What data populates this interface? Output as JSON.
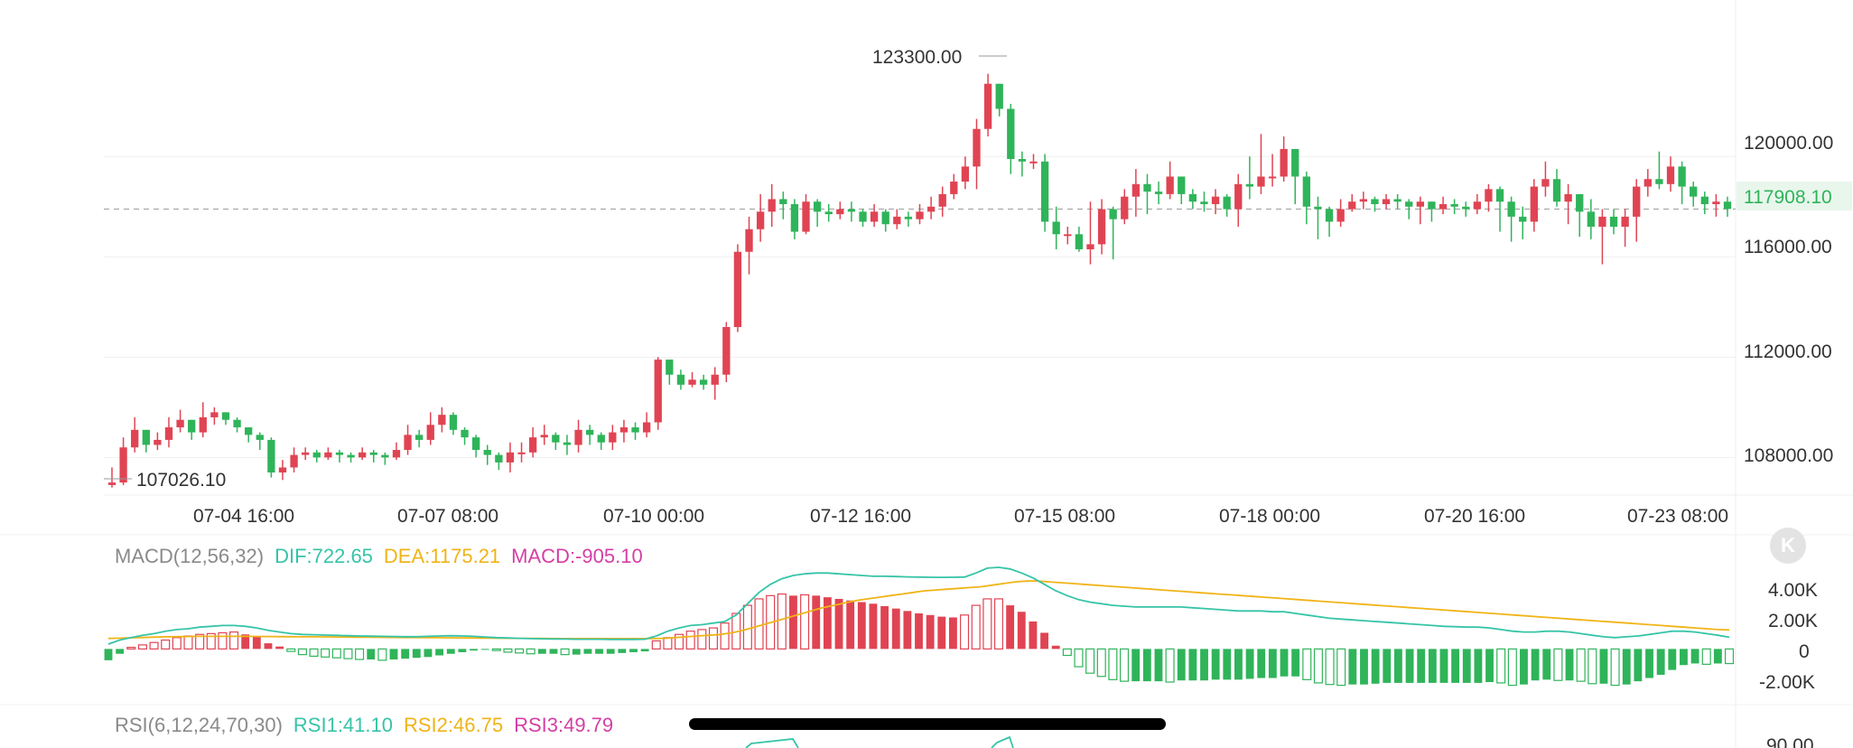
{
  "chart_data": [
    {
      "type": "candlestick",
      "x_tick_labels": [
        "07-04 16:00",
        "07-07 08:00",
        "07-10 00:00",
        "07-12 16:00",
        "07-15 08:00",
        "07-18 00:00",
        "07-20 16:00",
        "07-23 08:00"
      ],
      "y_tick_labels": [
        "120000.00",
        "116000.00",
        "112000.00",
        "108000.00"
      ],
      "y_ticks": [
        120000,
        116000,
        112000,
        108000
      ],
      "ylim": [
        106500,
        124800
      ],
      "current_price": 117908.1,
      "current_price_label": "117908.10",
      "high_label": "123300.00",
      "high_value": 123300,
      "low_label": "107026.10",
      "low_value": 107026.1,
      "up_color": "#e04453",
      "down_color": "#2fb45a",
      "closes": [
        107000,
        108400,
        109100,
        108500,
        108700,
        109200,
        109500,
        109000,
        109600,
        109800,
        109500,
        109200,
        108900,
        108700,
        107400,
        107600,
        108100,
        108200,
        108000,
        108200,
        108100,
        108000,
        108200,
        108100,
        108000,
        108300,
        108900,
        108700,
        109300,
        109700,
        109100,
        108800,
        108300,
        108100,
        107800,
        108200,
        108200,
        108800,
        108900,
        108600,
        108500,
        109100,
        108900,
        108600,
        109000,
        109200,
        109000,
        109400,
        111900,
        111300,
        110900,
        111100,
        110900,
        111300,
        113200,
        116200,
        117100,
        117800,
        118300,
        118100,
        117000,
        118200,
        117800,
        117700,
        117900,
        117800,
        117400,
        117800,
        117300,
        117600,
        117500,
        117800,
        118000,
        118500,
        119000,
        119600,
        121100,
        122900,
        121900,
        119900,
        119800,
        119800,
        117400,
        116900,
        116900,
        116300,
        116500,
        117900,
        117500,
        118400,
        118900,
        118600,
        118500,
        119200,
        118500,
        118200,
        118100,
        118400,
        117900,
        118900,
        118800,
        119200,
        119200,
        120300,
        119200,
        118000,
        117900,
        117400,
        117900,
        118200,
        118300,
        118100,
        118300,
        118200,
        118000,
        118200,
        117900,
        118100,
        118000,
        117900,
        118200,
        118700,
        118200,
        117600,
        117400,
        118800,
        119100,
        118200,
        118500,
        117800,
        117200,
        117600,
        117200,
        117600,
        118800,
        119100,
        118900,
        119600,
        118800,
        118400,
        118100,
        118200,
        117908.1
      ],
      "highs": [
        107600,
        108800,
        109600,
        108900,
        109000,
        109600,
        109900,
        109500,
        110200,
        110000,
        109800,
        109600,
        109200,
        109000,
        108800,
        107900,
        108400,
        108400,
        108300,
        108400,
        108300,
        108200,
        108400,
        108300,
        108200,
        108600,
        109300,
        109100,
        109800,
        110000,
        109800,
        109200,
        108900,
        108500,
        108200,
        108600,
        108600,
        109200,
        109300,
        109000,
        108900,
        109500,
        109300,
        109000,
        109300,
        109500,
        109400,
        109800,
        112000,
        111900,
        111500,
        111400,
        111300,
        111600,
        113400,
        116500,
        117600,
        118500,
        118900,
        118600,
        118300,
        118500,
        118300,
        118100,
        118200,
        118200,
        117900,
        118100,
        117900,
        117900,
        117800,
        118100,
        118400,
        118800,
        119300,
        120000,
        121500,
        123300,
        122900,
        122100,
        120200,
        120100,
        120100,
        118000,
        117200,
        117200,
        118200,
        118300,
        118000,
        118700,
        119500,
        119300,
        119000,
        119800,
        119200,
        118700,
        118600,
        118700,
        118500,
        119300,
        120000,
        120900,
        120100,
        120800,
        120200,
        119400,
        118400,
        118000,
        118300,
        118500,
        118600,
        118400,
        118500,
        118500,
        118300,
        118400,
        118200,
        118400,
        118300,
        118200,
        118500,
        118900,
        118800,
        118400,
        118000,
        119100,
        119800,
        119500,
        118900,
        118500,
        118300,
        117900,
        117900,
        117900,
        119100,
        119500,
        120200,
        120000,
        119800,
        119000,
        118600,
        118500,
        118400
      ],
      "lows": [
        106800,
        106900,
        108200,
        108200,
        108300,
        108400,
        109000,
        108700,
        108800,
        109300,
        109300,
        109000,
        108600,
        108300,
        107200,
        107100,
        107400,
        107900,
        107800,
        107900,
        107800,
        107800,
        107900,
        107800,
        107700,
        107900,
        108100,
        108400,
        108500,
        109000,
        108900,
        108500,
        108000,
        107700,
        107500,
        107400,
        107800,
        108000,
        108500,
        108300,
        108100,
        108200,
        108500,
        108300,
        108300,
        108600,
        108700,
        108800,
        109100,
        110900,
        110700,
        110800,
        110700,
        110300,
        111000,
        113000,
        115300,
        116600,
        117200,
        117500,
        116700,
        116900,
        117200,
        117400,
        117500,
        117400,
        117200,
        117200,
        117000,
        117100,
        117200,
        117300,
        117500,
        117600,
        118300,
        118700,
        118700,
        120800,
        121600,
        119300,
        119200,
        119500,
        117000,
        116300,
        116500,
        116200,
        115700,
        116100,
        115900,
        117300,
        117600,
        117700,
        118100,
        118300,
        118100,
        117900,
        117800,
        117700,
        117600,
        117200,
        118300,
        118500,
        118800,
        119000,
        118100,
        117300,
        116700,
        116800,
        117200,
        117800,
        117900,
        117800,
        117900,
        117900,
        117500,
        117300,
        117400,
        117700,
        117700,
        117600,
        117700,
        117800,
        117000,
        116600,
        116700,
        117000,
        118400,
        118000,
        117300,
        116800,
        116700,
        115700,
        116900,
        116400,
        116600,
        118400,
        118700,
        118600,
        118100,
        118000,
        117700,
        117600,
        117600
      ]
    },
    {
      "type": "bar+line",
      "name": "MACD(12,56,32)",
      "dif_label": "DIF:722.65",
      "dea_label": "DEA:1175.21",
      "macd_label": "MACD:-905.10",
      "y_tick_labels": [
        "4.00K",
        "2.00K",
        "0",
        "-2.00K"
      ],
      "y_ticks": [
        4000,
        2000,
        0,
        -2000
      ],
      "ylim": [
        -3000,
        5500
      ],
      "dif_color": "#36c4a8",
      "dea_color": "#f0b418",
      "macd_label_color": "#d53fa5",
      "hist": [
        -700,
        -300,
        100,
        250,
        400,
        550,
        700,
        800,
        900,
        950,
        1000,
        1050,
        900,
        750,
        350,
        150,
        -150,
        -350,
        -450,
        -500,
        -550,
        -600,
        -650,
        -650,
        -700,
        -650,
        -600,
        -550,
        -500,
        -400,
        -300,
        -200,
        -100,
        -50,
        -100,
        -200,
        -250,
        -300,
        -300,
        -300,
        -350,
        -350,
        -300,
        -300,
        -300,
        -250,
        -200,
        -150,
        500,
        700,
        900,
        1100,
        1200,
        1300,
        1600,
        2200,
        2700,
        3100,
        3300,
        3400,
        3300,
        3350,
        3300,
        3200,
        3100,
        3000,
        2900,
        2800,
        2650,
        2500,
        2350,
        2200,
        2100,
        2000,
        1950,
        2100,
        2700,
        3100,
        3100,
        2700,
        2300,
        1700,
        1000,
        200,
        -400,
        -1100,
        -1500,
        -1700,
        -1900,
        -2000,
        -2000,
        -2000,
        -2000,
        -2050,
        -1950,
        -1950,
        -1950,
        -1900,
        -1900,
        -1900,
        -1850,
        -1800,
        -1800,
        -1700,
        -1700,
        -1900,
        -2100,
        -2200,
        -2250,
        -2200,
        -2200,
        -2150,
        -2100,
        -2100,
        -2100,
        -2100,
        -2100,
        -2100,
        -2100,
        -2100,
        -2100,
        -2050,
        -2100,
        -2250,
        -2200,
        -1950,
        -1900,
        -1950,
        -1950,
        -2000,
        -2150,
        -2150,
        -2250,
        -2200,
        -2000,
        -1800,
        -1600,
        -1300,
        -1000,
        -900,
        -950,
        -900,
        -905.1
      ],
      "dif": [
        300,
        550,
        700,
        850,
        950,
        1100,
        1200,
        1250,
        1350,
        1400,
        1450,
        1450,
        1400,
        1300,
        1150,
        1050,
        950,
        900,
        880,
        860,
        840,
        820,
        800,
        790,
        780,
        770,
        760,
        760,
        780,
        800,
        820,
        800,
        780,
        740,
        700,
        680,
        660,
        640,
        630,
        620,
        610,
        600,
        600,
        600,
        590,
        590,
        590,
        600,
        800,
        1100,
        1300,
        1450,
        1500,
        1600,
        1700,
        2100,
        2800,
        3500,
        4000,
        4350,
        4550,
        4650,
        4700,
        4700,
        4650,
        4600,
        4550,
        4500,
        4500,
        4480,
        4460,
        4450,
        4440,
        4430,
        4440,
        4450,
        4700,
        5000,
        5050,
        4950,
        4700,
        4400,
        4000,
        3600,
        3300,
        3050,
        2900,
        2800,
        2700,
        2650,
        2600,
        2600,
        2600,
        2600,
        2600,
        2550,
        2500,
        2450,
        2400,
        2350,
        2350,
        2350,
        2300,
        2300,
        2200,
        2100,
        2000,
        1900,
        1850,
        1800,
        1750,
        1700,
        1650,
        1600,
        1550,
        1500,
        1450,
        1400,
        1380,
        1350,
        1350,
        1300,
        1200,
        1100,
        1050,
        1050,
        1100,
        1100,
        1050,
        950,
        850,
        750,
        700,
        750,
        800,
        900,
        1000,
        1100,
        1100,
        1050,
        950,
        850,
        722.65
      ],
      "dea": [
        650,
        670,
        690,
        710,
        730,
        750,
        760,
        770,
        780,
        780,
        780,
        780,
        780,
        775,
        770,
        765,
        760,
        755,
        750,
        745,
        740,
        735,
        730,
        725,
        720,
        715,
        710,
        705,
        700,
        695,
        690,
        685,
        680,
        675,
        670,
        665,
        660,
        655,
        650,
        645,
        640,
        640,
        640,
        640,
        640,
        640,
        640,
        640,
        640,
        660,
        700,
        750,
        800,
        850,
        900,
        1000,
        1150,
        1350,
        1550,
        1750,
        1950,
        2150,
        2350,
        2550,
        2700,
        2850,
        3000,
        3100,
        3200,
        3300,
        3400,
        3500,
        3600,
        3650,
        3700,
        3750,
        3800,
        3850,
        3950,
        4050,
        4150,
        4200,
        4200,
        4150,
        4100,
        4050,
        4000,
        3950,
        3900,
        3850,
        3800,
        3750,
        3700,
        3650,
        3600,
        3550,
        3500,
        3450,
        3400,
        3350,
        3300,
        3250,
        3200,
        3150,
        3100,
        3050,
        3000,
        2950,
        2900,
        2850,
        2800,
        2750,
        2700,
        2650,
        2600,
        2550,
        2500,
        2450,
        2400,
        2350,
        2300,
        2250,
        2200,
        2150,
        2100,
        2050,
        2000,
        1950,
        1900,
        1850,
        1800,
        1750,
        1700,
        1650,
        1600,
        1550,
        1500,
        1450,
        1400,
        1350,
        1300,
        1250,
        1200,
        1175.21
      ]
    },
    {
      "type": "line",
      "name": "RSI(6,12,24,70,30)",
      "rsi1_label": "RSI1:41.10",
      "rsi2_label": "RSI2:46.75",
      "rsi3_label": "RSI3:49.79",
      "y_tick_labels": [
        "90.00"
      ],
      "rsi1_color": "#36c4a8",
      "rsi2_color": "#f0b418",
      "rsi3_color": "#d53fa5"
    }
  ]
}
